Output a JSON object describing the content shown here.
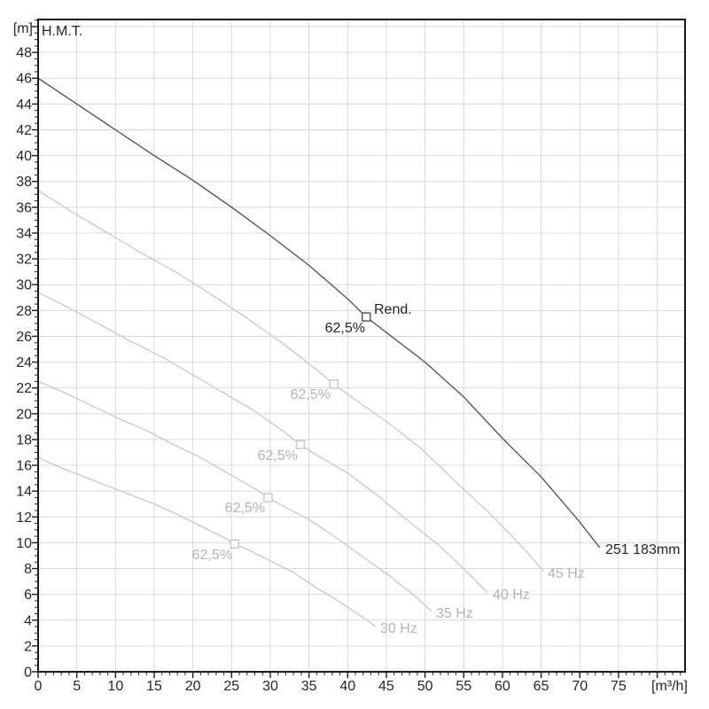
{
  "chart_data": {
    "type": "line",
    "title": "H.M.T.",
    "ylabel": "[m]",
    "xlabel": "[m³/h]",
    "xlim": [
      0,
      83.6
    ],
    "ylim": [
      0,
      50.55
    ],
    "x_tick_labels": [
      0,
      5,
      10,
      15,
      20,
      25,
      30,
      35,
      40,
      45,
      50,
      55,
      60,
      65,
      70,
      75
    ],
    "y_tick_labels": [
      0,
      2,
      4,
      6,
      8,
      10,
      12,
      14,
      16,
      18,
      20,
      22,
      24,
      26,
      28,
      30,
      32,
      34,
      36,
      38,
      40,
      42,
      44,
      46,
      48
    ],
    "x_minor_step": 1,
    "y_minor_step": 0.5,
    "grid": {
      "x_step": 5,
      "x_max": 80,
      "y_step": 2,
      "y_max": 50
    },
    "legend_position": "on-curve-labels",
    "colors": {
      "frame": "#1a1a1a",
      "grid": "#d9d9d9",
      "main_curve": "#4f4f4f",
      "light_curve": "#c7c7c7",
      "dark_text": "#262626",
      "gray_text": "#b3b3b3",
      "marker_fill": "#ffffff"
    },
    "labels": {
      "rend": "Rend."
    },
    "series": [
      {
        "name": "main-183mm",
        "label": "251 183mm",
        "color_key": "main_curve",
        "points": [
          [
            0,
            46
          ],
          [
            5,
            44
          ],
          [
            10,
            42
          ],
          [
            15,
            40
          ],
          [
            20,
            38.1
          ],
          [
            25,
            36
          ],
          [
            30,
            33.8
          ],
          [
            35,
            31.5
          ],
          [
            40,
            28.9
          ],
          [
            42.4,
            27.5
          ],
          [
            45,
            26.3
          ],
          [
            50,
            24
          ],
          [
            55,
            21.3
          ],
          [
            60,
            18.1
          ],
          [
            65,
            15.1
          ],
          [
            70,
            11.6
          ],
          [
            72.6,
            9.6
          ]
        ],
        "efficiency_point": {
          "x": 42.4,
          "y": 27.5,
          "value": "62,5%"
        }
      },
      {
        "name": "45hz",
        "label": "45 Hz",
        "color_key": "light_curve",
        "points": [
          [
            0,
            37.3
          ],
          [
            4.5,
            35.6
          ],
          [
            9,
            34
          ],
          [
            13.5,
            32.4
          ],
          [
            18,
            30.9
          ],
          [
            22.5,
            29.2
          ],
          [
            27,
            27.4
          ],
          [
            31.5,
            25.5
          ],
          [
            36,
            23.4
          ],
          [
            38.2,
            22.3
          ],
          [
            40.5,
            21.3
          ],
          [
            45,
            19.4
          ],
          [
            49.5,
            17.3
          ],
          [
            54,
            14.7
          ],
          [
            58.5,
            12.2
          ],
          [
            63,
            9.4
          ],
          [
            65.3,
            7.8
          ]
        ],
        "efficiency_point": {
          "x": 38.2,
          "y": 22.3,
          "value": "62,5%"
        }
      },
      {
        "name": "40hz",
        "label": "40 Hz",
        "color_key": "light_curve",
        "points": [
          [
            0,
            29.4
          ],
          [
            4,
            28.2
          ],
          [
            8,
            26.9
          ],
          [
            12,
            25.6
          ],
          [
            16,
            24.4
          ],
          [
            20,
            23
          ],
          [
            24,
            21.6
          ],
          [
            28,
            20.2
          ],
          [
            32,
            18.5
          ],
          [
            33.9,
            17.6
          ],
          [
            36,
            16.8
          ],
          [
            40,
            15.4
          ],
          [
            44,
            13.6
          ],
          [
            48,
            11.6
          ],
          [
            52,
            9.7
          ],
          [
            56,
            7.4
          ],
          [
            58.1,
            6.1
          ]
        ],
        "efficiency_point": {
          "x": 33.9,
          "y": 17.6,
          "value": "62,5%"
        }
      },
      {
        "name": "35hz",
        "label": "35 Hz",
        "color_key": "light_curve",
        "points": [
          [
            0,
            22.5
          ],
          [
            3.5,
            21.6
          ],
          [
            7,
            20.6
          ],
          [
            10.5,
            19.6
          ],
          [
            14,
            18.7
          ],
          [
            17.5,
            17.6
          ],
          [
            21,
            16.6
          ],
          [
            24.5,
            15.4
          ],
          [
            28,
            14.2
          ],
          [
            29.7,
            13.5
          ],
          [
            31.5,
            12.9
          ],
          [
            35,
            11.8
          ],
          [
            38.5,
            10.4
          ],
          [
            42,
            8.9
          ],
          [
            45.5,
            7.4
          ],
          [
            49,
            5.7
          ],
          [
            50.8,
            4.7
          ]
        ],
        "efficiency_point": {
          "x": 29.7,
          "y": 13.5,
          "value": "62,5%"
        }
      },
      {
        "name": "30hz",
        "label": "30 Hz",
        "color_key": "light_curve",
        "points": [
          [
            0,
            16.6
          ],
          [
            3,
            15.8
          ],
          [
            6,
            15.1
          ],
          [
            9,
            14.4
          ],
          [
            12,
            13.7
          ],
          [
            15,
            13
          ],
          [
            18,
            12.2
          ],
          [
            21,
            11.3
          ],
          [
            24,
            10.4
          ],
          [
            25.4,
            9.9
          ],
          [
            27,
            9.5
          ],
          [
            30,
            8.6
          ],
          [
            33,
            7.7
          ],
          [
            36,
            6.5
          ],
          [
            39,
            5.4
          ],
          [
            42,
            4.2
          ],
          [
            43.6,
            3.5
          ]
        ],
        "efficiency_point": {
          "x": 25.4,
          "y": 9.9,
          "value": "62,5%"
        }
      }
    ]
  }
}
